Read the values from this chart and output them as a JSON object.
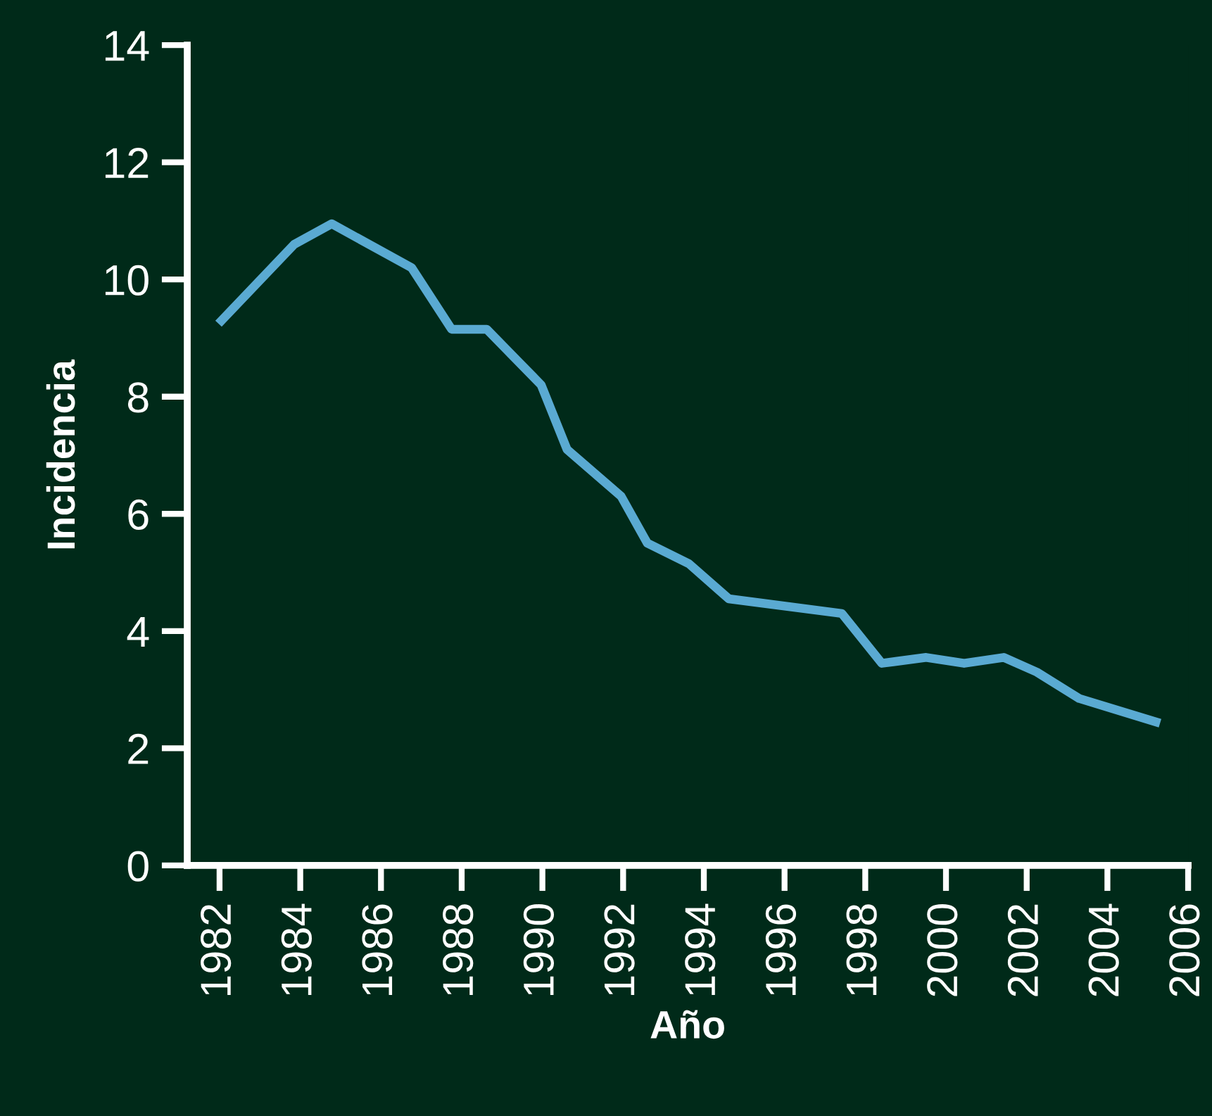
{
  "chart_data": {
    "type": "line",
    "xlabel": "Año",
    "ylabel": "Incidencia",
    "x": [
      1982.05,
      1983.85,
      1984.78,
      1986.76,
      1987.75,
      1988.62,
      1989.97,
      1990.61,
      1991.95,
      1992.6,
      1993.63,
      1994.62,
      1997.42,
      1998.41,
      1999.51,
      2000.45,
      2001.43,
      2002.25,
      2003.3,
      2005.2
    ],
    "series": [
      {
        "color": "#5aaad2",
        "values": [
          9.3,
          10.6,
          10.95,
          10.2,
          9.15,
          9.15,
          8.2,
          7.1,
          6.3,
          5.5,
          5.15,
          4.55,
          4.3,
          3.45,
          3.55,
          3.45,
          3.55,
          3.3,
          2.85,
          2.45
        ]
      }
    ],
    "xlim": [
      1981.2,
      2006
    ],
    "xticks": [
      1982,
      1984,
      1986,
      1988,
      1990,
      1992,
      1994,
      1996,
      1998,
      2000,
      2002,
      2004,
      2006
    ],
    "ylim": [
      0,
      14
    ],
    "yticks": [
      0,
      2,
      4,
      6,
      8,
      10,
      12,
      14
    ],
    "grid": false,
    "legend": false,
    "marker": "none",
    "line_style": "solid"
  }
}
